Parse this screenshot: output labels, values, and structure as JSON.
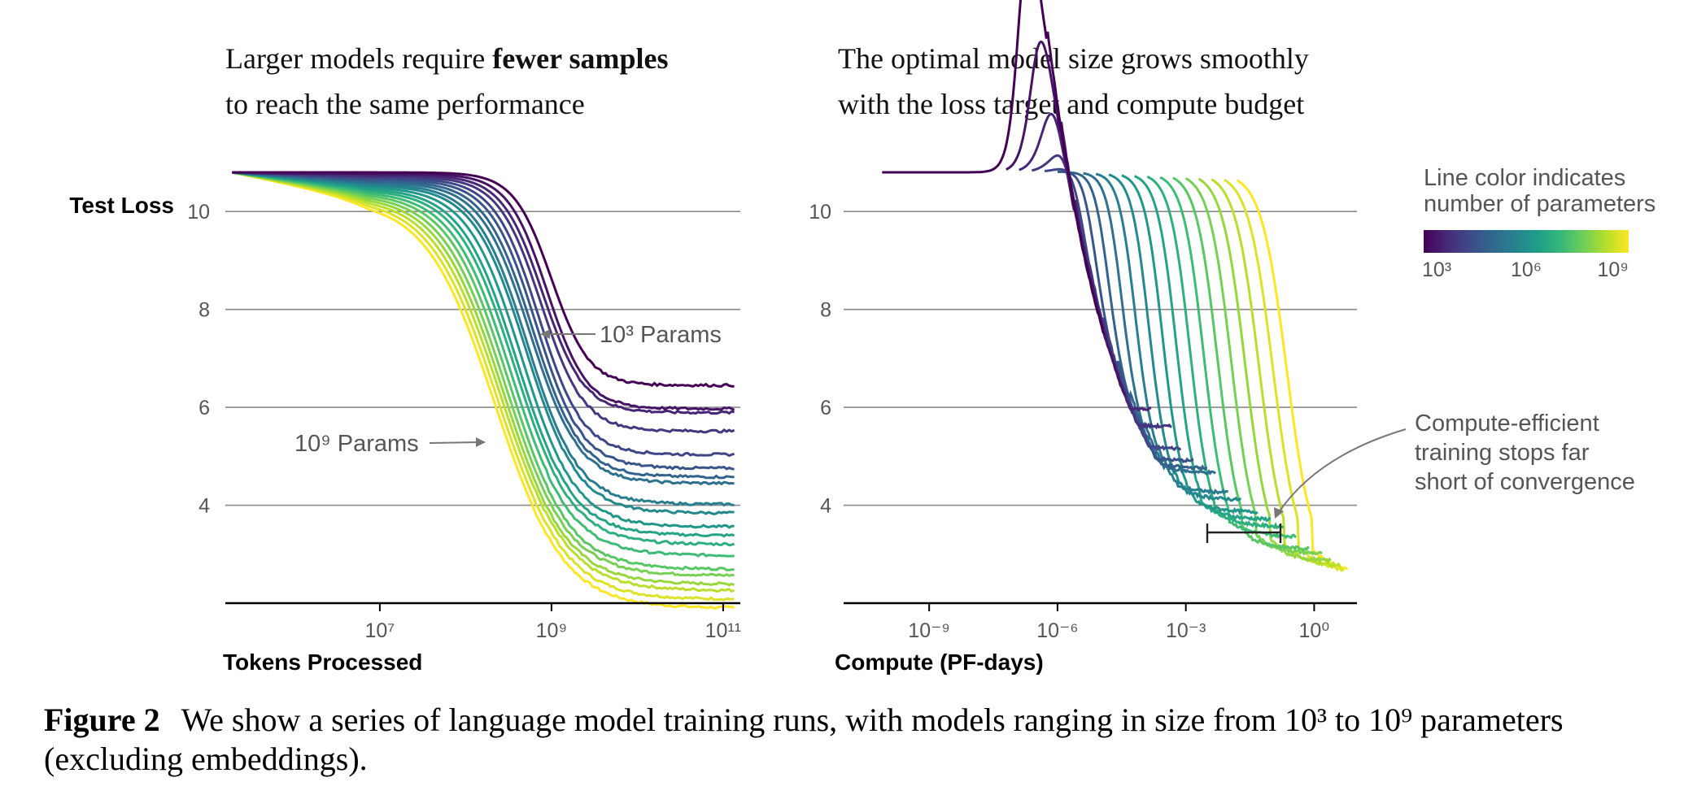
{
  "left_panel": {
    "title_part1": "Larger models require ",
    "title_bold": "fewer samples",
    "title_line2": "to reach the same performance",
    "ylabel": "Test Loss",
    "xlabel": "Tokens Processed",
    "annotation_small": "10³ Params",
    "annotation_large": "10⁹ Params"
  },
  "right_panel": {
    "title_line1": "The optimal model size grows smoothly",
    "title_line2": "with the loss target and compute budget",
    "xlabel": "Compute (PF-days)",
    "annotation": [
      "Compute-efficient",
      "training stops far",
      "short of convergence"
    ]
  },
  "colorbar": {
    "title_line1": "Line color indicates",
    "title_line2": "number of parameters",
    "tick_labels": [
      "10³",
      "10⁶",
      "10⁹"
    ],
    "colors": [
      "#440154",
      "#482878",
      "#3e4989",
      "#31688e",
      "#26828e",
      "#1f9e89",
      "#35b779",
      "#6ece58",
      "#b5de2b",
      "#fde725"
    ]
  },
  "caption": {
    "label": "Figure 2",
    "text": "We show a series of language model training runs, with models ranging in size from 10³ to 10⁹ parameters (excluding embeddings)."
  },
  "chart_data": [
    {
      "type": "line",
      "title": "Larger models require fewer samples to reach the same performance",
      "xlabel": "Tokens Processed",
      "ylabel": "Test Loss",
      "x_scale": "log",
      "x_ticks": [
        "10⁷",
        "10⁹",
        "10¹¹"
      ],
      "y_ticks": [
        "4",
        "6",
        "8",
        "10"
      ],
      "xlim_log10": [
        5.2,
        11.2
      ],
      "ylim": [
        2,
        10.9
      ],
      "grid": "horizontal",
      "series_count": 20,
      "params_log10_range": [
        3,
        9
      ],
      "final_loss_by_model": [
        6.45,
        6.0,
        5.95,
        5.6,
        5.15,
        4.9,
        4.75,
        4.65,
        4.25,
        4.1,
        3.85,
        3.7,
        3.55,
        3.35,
        3.1,
        3.0,
        2.85,
        2.75,
        2.6,
        2.45
      ],
      "midpoint_log10_tokens_by_model": [
        9.0,
        8.95,
        8.9,
        8.88,
        8.85,
        8.82,
        8.78,
        8.75,
        8.72,
        8.7,
        8.65,
        8.6,
        8.57,
        8.53,
        8.5,
        8.46,
        8.43,
        8.4,
        8.37,
        8.34
      ]
    },
    {
      "type": "line",
      "title": "The optimal model size grows smoothly with the loss target and compute budget",
      "xlabel": "Compute (PF-days)",
      "x_scale": "log",
      "x_ticks": [
        "10⁻⁹",
        "10⁻⁶",
        "10⁻³",
        "10⁰"
      ],
      "y_ticks": [
        "4",
        "6",
        "8",
        "10"
      ],
      "xlim_log10": [
        -11,
        1
      ],
      "ylim": [
        2,
        10.9
      ],
      "grid": "horizontal",
      "series_count": 20,
      "params_log10_range": [
        3,
        9
      ],
      "start_log10_compute_by_model": [
        -7.4,
        -7.1,
        -6.8,
        -6.5,
        -6.2,
        -5.9,
        -5.6,
        -5.3,
        -5.0,
        -4.7,
        -4.4,
        -4.1,
        -3.8,
        -3.5,
        -3.2,
        -2.9,
        -2.6,
        -2.3,
        -2.0,
        -1.7
      ],
      "end_log10_compute_by_model": [
        -4.9,
        -4.4,
        -3.8,
        -3.3,
        -3.1,
        -2.8,
        -2.5,
        -2.3,
        -2.0,
        -1.7,
        -1.3,
        -1.0,
        -0.7,
        -0.4,
        -0.1,
        0.2,
        0.4,
        0.6,
        0.7,
        0.8
      ],
      "compute_efficient_range_log10": [
        -2.6,
        -0.9
      ]
    }
  ]
}
